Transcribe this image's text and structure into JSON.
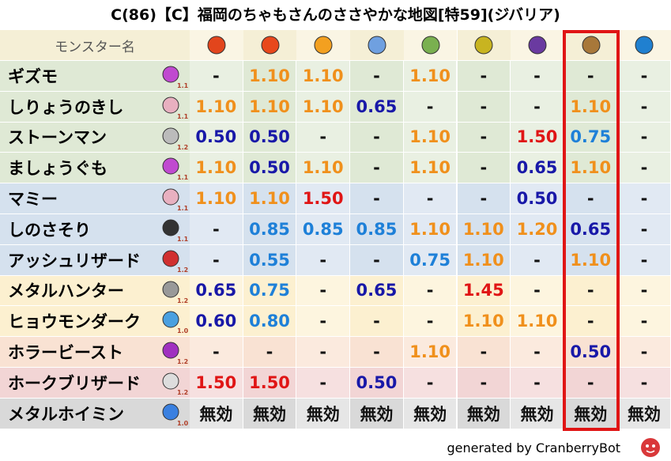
{
  "title": "C(86)【C】福岡のちゃもさんのささやかな地図[特59](ジバリア)",
  "table": {
    "header": "モンスター名",
    "rows": [
      {
        "name": "ギズモ",
        "level": "1.1",
        "cells": [
          "-",
          "1.10",
          "1.10",
          "-",
          "1.10",
          "-",
          "-",
          "-",
          "-"
        ]
      },
      {
        "name": "しりょうのきし",
        "level": "1.1",
        "cells": [
          "1.10",
          "1.10",
          "1.10",
          "0.65",
          "-",
          "-",
          "-",
          "1.10",
          "-"
        ]
      },
      {
        "name": "ストーンマン",
        "level": "1.2",
        "cells": [
          "0.50",
          "0.50",
          "-",
          "-",
          "1.10",
          "-",
          "1.50",
          "0.75",
          "-"
        ]
      },
      {
        "name": "ましょうぐも",
        "level": "1.1",
        "cells": [
          "1.10",
          "0.50",
          "1.10",
          "-",
          "1.10",
          "-",
          "0.65",
          "1.10",
          "-"
        ]
      },
      {
        "name": "マミー",
        "level": "1.1",
        "cells": [
          "1.10",
          "1.10",
          "1.50",
          "-",
          "-",
          "-",
          "0.50",
          "-",
          "-"
        ]
      },
      {
        "name": "しのさそり",
        "level": "1.1",
        "cells": [
          "-",
          "0.85",
          "0.85",
          "0.85",
          "1.10",
          "1.10",
          "1.20",
          "0.65",
          "-"
        ]
      },
      {
        "name": "アッシュリザード",
        "level": "1.2",
        "cells": [
          "-",
          "0.55",
          "-",
          "-",
          "0.75",
          "1.10",
          "-",
          "1.10",
          "-"
        ]
      },
      {
        "name": "メタルハンター",
        "level": "1.2",
        "cells": [
          "0.65",
          "0.75",
          "-",
          "0.65",
          "-",
          "1.45",
          "-",
          "-",
          "-"
        ]
      },
      {
        "name": "ヒョウモンダーク",
        "level": "1.0",
        "cells": [
          "0.60",
          "0.80",
          "-",
          "-",
          "-",
          "1.10",
          "1.10",
          "-",
          "-"
        ]
      },
      {
        "name": "ホラービースト",
        "level": "1.2",
        "cells": [
          "-",
          "-",
          "-",
          "-",
          "1.10",
          "-",
          "-",
          "0.50",
          "-"
        ]
      },
      {
        "name": "ホークブリザード",
        "level": "1.2",
        "cells": [
          "1.50",
          "1.50",
          "-",
          "0.50",
          "-",
          "-",
          "-",
          "-",
          "-"
        ]
      },
      {
        "name": "メタルホイミン",
        "level": "1.0",
        "cells": [
          "無効",
          "無効",
          "無効",
          "無効",
          "無効",
          "無効",
          "無効",
          "無効",
          "無効"
        ]
      }
    ]
  },
  "footer": "generated by CranberryBot"
}
